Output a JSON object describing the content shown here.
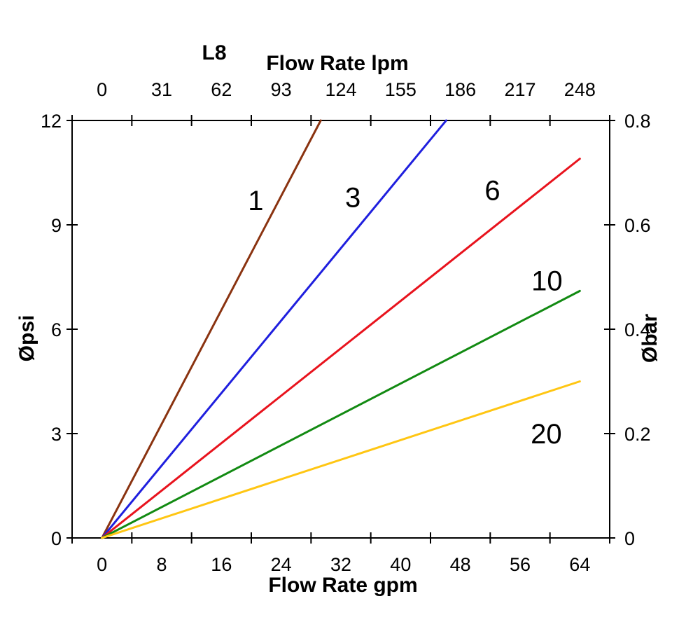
{
  "figure": {
    "title": "L8",
    "top_axis_title": "Flow Rate lpm",
    "bottom_axis_title": "Flow Rate gpm",
    "left_axis_title": "Øpsi",
    "right_axis_title": "Øbar"
  },
  "chart_data": {
    "type": "line",
    "title": "L8",
    "grid": false,
    "legend_position": "inline-labels-on-lines",
    "x_axis_bottom": {
      "label": "Flow Rate gpm",
      "tick_labels": [
        "0",
        "8",
        "16",
        "24",
        "32",
        "40",
        "48",
        "56",
        "64"
      ],
      "tick_label_values_gpm": [
        0,
        8,
        16,
        24,
        32,
        40,
        48,
        56,
        64
      ],
      "range_gpm": [
        -4,
        68
      ],
      "tick_marks_between_labels": true
    },
    "x_axis_top": {
      "label": "Flow Rate lpm",
      "tick_labels": [
        "0",
        "31",
        "62",
        "93",
        "124",
        "155",
        "186",
        "217",
        "248"
      ],
      "aligned_with_bottom_labels": true
    },
    "y_axis_left": {
      "label": "Øpsi",
      "tick_labels": [
        "0",
        "3",
        "6",
        "9",
        "12"
      ],
      "tick_label_values_psi": [
        0,
        3,
        6,
        9,
        12
      ],
      "range_psi": [
        0,
        12
      ]
    },
    "y_axis_right": {
      "label": "Øbar",
      "tick_labels": [
        "0",
        "0.2",
        "0.4",
        "0.6",
        "0.8"
      ],
      "range_bar": [
        0,
        0.8
      ]
    },
    "series": [
      {
        "name": "1",
        "color": "#8A3310",
        "points_gpm_psi": [
          [
            0,
            0
          ],
          [
            29.3,
            12
          ]
        ],
        "label_pos_gpm_psi": [
          20.6,
          9.7
        ]
      },
      {
        "name": "3",
        "color": "#1F1FDE",
        "points_gpm_psi": [
          [
            0,
            0
          ],
          [
            46.1,
            12
          ]
        ],
        "label_pos_gpm_psi": [
          33.6,
          9.8
        ]
      },
      {
        "name": "6",
        "color": "#E8131D",
        "points_gpm_psi": [
          [
            0,
            0
          ],
          [
            64,
            10.9
          ]
        ],
        "label_pos_gpm_psi": [
          52.3,
          10.0
        ]
      },
      {
        "name": "10",
        "color": "#128A12",
        "points_gpm_psi": [
          [
            0,
            0
          ],
          [
            64,
            7.1
          ]
        ],
        "label_pos_gpm_psi": [
          59.6,
          7.4
        ]
      },
      {
        "name": "20",
        "color": "#FFC613",
        "points_gpm_psi": [
          [
            0,
            0
          ],
          [
            64,
            4.5
          ]
        ],
        "label_pos_gpm_psi": [
          59.5,
          3.0
        ]
      }
    ]
  }
}
